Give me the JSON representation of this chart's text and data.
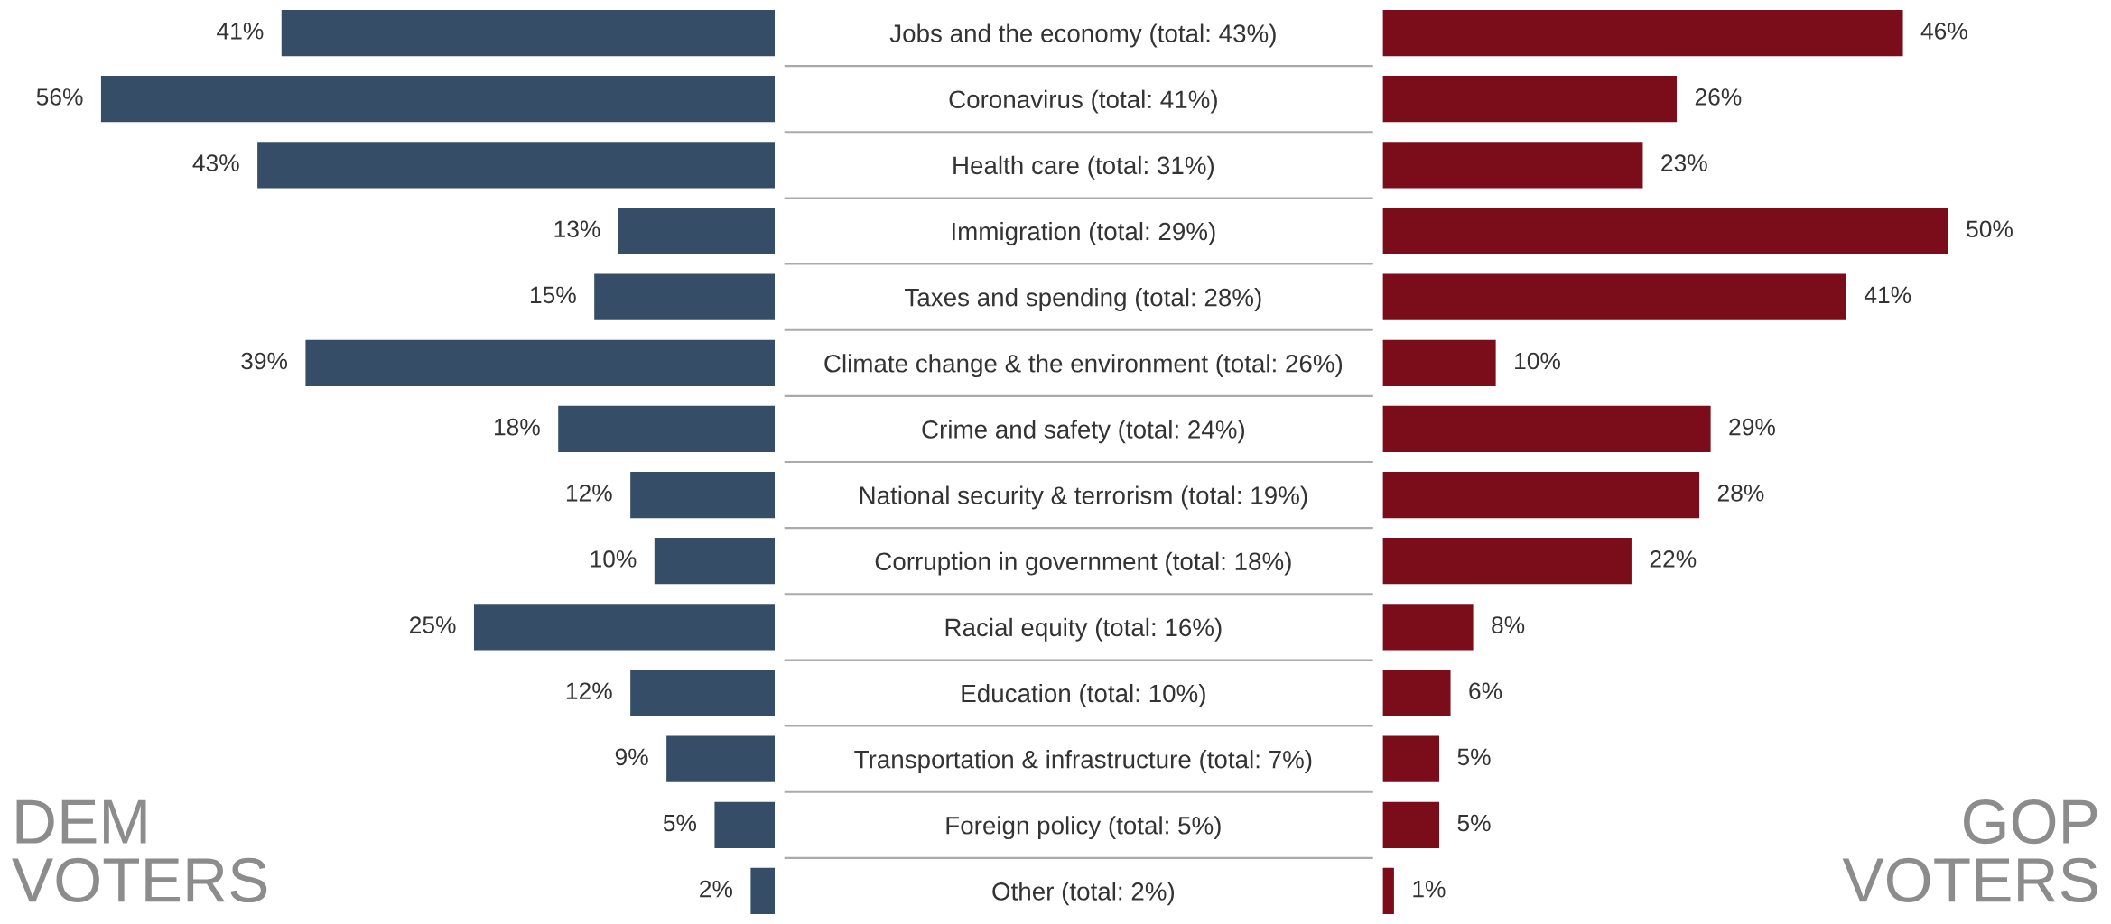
{
  "chart_data": [
    {
      "type": "bar",
      "orientation": "horizontal",
      "tick_labels": "y",
      "categories": [
        "Jobs and the economy (total: 43%)",
        "Coronavirus (total: 41%)",
        "Health care (total: 31%)",
        "Immigration (total: 29%)",
        "Taxes and spending (total: 28%)",
        "Climate change & the environment (total: 26%)",
        "Crime and safety (total: 24%)",
        "National security & terrorism (total: 19%)",
        "Corruption in government (total: 18%)",
        "Racial equity (total: 16%)",
        "Education (total: 10%)",
        "Transportation & infrastructure (total: 7%)",
        "Foreign policy (total: 5%)",
        "Other (total: 2%)"
      ],
      "series": [
        {
          "color": "#354d66",
          "values": [
            41,
            56,
            43,
            13,
            15,
            39,
            18,
            12,
            10,
            25,
            12,
            9,
            5,
            2
          ],
          "value_labels": [
            "41%",
            "56%",
            "43%",
            "13%",
            "15%",
            "39%",
            "18%",
            "12%",
            "10%",
            "25%",
            "12%",
            "9%",
            "5%",
            "2%"
          ]
        }
      ],
      "annotations": [
        "DEM\nVOTERS"
      ]
    },
    {
      "type": "bar",
      "orientation": "horizontal",
      "tick_labels": false,
      "categories": [
        null,
        null,
        null,
        null,
        null,
        null,
        null,
        null,
        null,
        null,
        null,
        null,
        null,
        null
      ],
      "series": [
        {
          "color": "#7b0d1a",
          "values": [
            46,
            26,
            23,
            50,
            41,
            10,
            29,
            28,
            22,
            8,
            6,
            5,
            5,
            1
          ],
          "value_labels": [
            "46%",
            "26%",
            "23%",
            "50%",
            "41%",
            "10%",
            "29%",
            "28%",
            "22%",
            "8%",
            "6%",
            "5%",
            "5%",
            "1%"
          ]
        }
      ],
      "annotations": [
        "GOP\nVOTERS"
      ]
    }
  ]
}
